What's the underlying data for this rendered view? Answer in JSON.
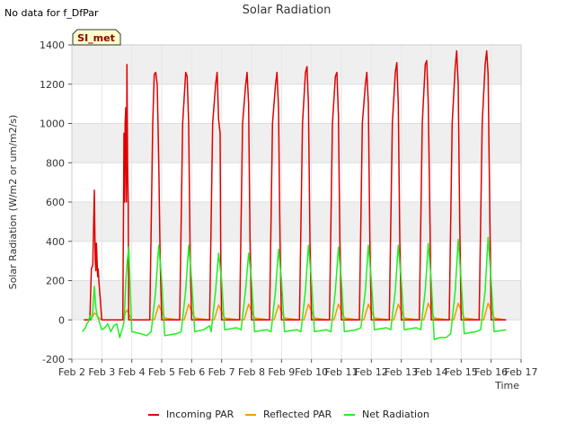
{
  "no_data_note": "No data for f_DfPar",
  "badge": "SI_met",
  "colors": {
    "incoming": "#e00000",
    "reflected": "#e8a000",
    "net": "#22ee22",
    "band": "#efefef",
    "badge_fill": "#ffffcc",
    "badge_text": "#8b0000"
  },
  "chart_data": {
    "type": "line",
    "title": "Solar Radiation",
    "xlabel": "Time",
    "ylabel": "Solar Radiation (W/m2 or um/m2/s)",
    "xlim": [
      2,
      17
    ],
    "ylim": [
      -200,
      1400
    ],
    "yticks": [
      -200,
      0,
      200,
      400,
      600,
      800,
      1000,
      1200,
      1400
    ],
    "xticks": [
      {
        "value": 2,
        "label": "Feb 2"
      },
      {
        "value": 3,
        "label": "Feb 3"
      },
      {
        "value": 4,
        "label": "Feb 4"
      },
      {
        "value": 5,
        "label": "Feb 5"
      },
      {
        "value": 6,
        "label": "Feb 6"
      },
      {
        "value": 7,
        "label": "Feb 7"
      },
      {
        "value": 8,
        "label": "Feb 8"
      },
      {
        "value": 9,
        "label": "Feb 9"
      },
      {
        "value": 10,
        "label": "Feb 10"
      },
      {
        "value": 11,
        "label": "Feb 11"
      },
      {
        "value": 12,
        "label": "Feb 12"
      },
      {
        "value": 13,
        "label": "Feb 13"
      },
      {
        "value": 14,
        "label": "Feb 14"
      },
      {
        "value": 15,
        "label": "Feb 15"
      },
      {
        "value": 16,
        "label": "Feb 16"
      },
      {
        "value": 17,
        "label": "Feb 17"
      }
    ],
    "grid": true,
    "legend_position": "bottom",
    "series": [
      {
        "name": "Incoming PAR",
        "x": [
          2.4,
          2.6,
          2.65,
          2.7,
          2.75,
          2.78,
          2.8,
          2.82,
          2.86,
          2.88,
          2.9,
          2.95,
          3.0,
          3.05,
          3.1,
          3.5,
          3.7,
          3.74,
          3.76,
          3.78,
          3.8,
          3.82,
          3.84,
          3.86,
          3.88,
          3.9,
          3.92,
          3.95,
          4.0,
          4.6,
          4.7,
          4.75,
          4.8,
          4.85,
          4.9,
          4.95,
          5.0,
          5.1,
          5.6,
          5.7,
          5.8,
          5.85,
          5.9,
          5.95,
          6.0,
          6.1,
          6.6,
          6.7,
          6.8,
          6.85,
          6.9,
          6.95,
          6.97,
          7.0,
          7.1,
          7.6,
          7.7,
          7.8,
          7.85,
          7.9,
          7.95,
          8.0,
          8.1,
          8.6,
          8.7,
          8.8,
          8.85,
          8.9,
          8.95,
          9.0,
          9.1,
          9.6,
          9.7,
          9.8,
          9.85,
          9.9,
          9.95,
          10.0,
          10.1,
          10.6,
          10.7,
          10.8,
          10.85,
          10.9,
          10.95,
          11.0,
          11.1,
          11.6,
          11.7,
          11.8,
          11.85,
          11.9,
          11.95,
          12.0,
          12.1,
          12.6,
          12.7,
          12.8,
          12.85,
          12.9,
          12.95,
          13.0,
          13.1,
          13.6,
          13.7,
          13.8,
          13.85,
          13.9,
          13.95,
          14.0,
          14.1,
          14.6,
          14.7,
          14.8,
          14.85,
          14.9,
          14.95,
          15.0,
          15.1,
          15.6,
          15.7,
          15.8,
          15.85,
          15.9,
          15.95,
          16.0,
          16.1,
          16.5
        ],
        "y": [
          0,
          0,
          260,
          280,
          660,
          300,
          250,
          390,
          220,
          260,
          200,
          100,
          0,
          0,
          0,
          0,
          0,
          950,
          600,
          1000,
          1080,
          600,
          1300,
          800,
          600,
          0,
          0,
          0,
          0,
          0,
          1000,
          1250,
          1260,
          1200,
          800,
          300,
          0,
          0,
          0,
          1000,
          1260,
          1240,
          1000,
          300,
          0,
          0,
          0,
          1000,
          1200,
          1260,
          1020,
          950,
          300,
          0,
          0,
          0,
          1000,
          1190,
          1260,
          1100,
          400,
          0,
          0,
          0,
          1000,
          1200,
          1260,
          1080,
          400,
          0,
          0,
          0,
          1000,
          1260,
          1290,
          1100,
          400,
          0,
          0,
          0,
          1000,
          1240,
          1260,
          1040,
          400,
          0,
          0,
          0,
          1000,
          1200,
          1260,
          1100,
          400,
          0,
          0,
          0,
          1000,
          1260,
          1310,
          1100,
          400,
          0,
          0,
          0,
          1000,
          1300,
          1320,
          1100,
          580,
          0,
          0,
          0,
          1000,
          1290,
          1370,
          1200,
          500,
          0,
          0,
          0,
          1000,
          1300,
          1370,
          1250,
          600,
          0,
          0,
          0
        ]
      },
      {
        "name": "Reflected PAR",
        "x": [
          2.4,
          2.6,
          2.7,
          2.75,
          2.8,
          2.9,
          3.0,
          3.5,
          3.7,
          3.8,
          3.85,
          3.9,
          4.0,
          4.6,
          4.75,
          4.9,
          5.1,
          5.6,
          5.75,
          5.9,
          6.1,
          6.6,
          6.75,
          6.9,
          7.1,
          7.6,
          7.75,
          7.9,
          8.1,
          8.6,
          8.75,
          8.9,
          9.1,
          9.6,
          9.75,
          9.9,
          10.1,
          10.6,
          10.75,
          10.9,
          11.1,
          11.6,
          11.75,
          11.9,
          12.1,
          12.6,
          12.75,
          12.9,
          13.1,
          13.6,
          13.75,
          13.9,
          14.1,
          14.6,
          14.75,
          14.9,
          15.1,
          15.6,
          15.75,
          15.9,
          16.1,
          16.5
        ],
        "y": [
          0,
          0,
          20,
          35,
          30,
          10,
          0,
          0,
          0,
          40,
          50,
          30,
          0,
          0,
          0,
          75,
          10,
          0,
          0,
          80,
          10,
          0,
          0,
          75,
          10,
          0,
          0,
          80,
          10,
          0,
          0,
          75,
          10,
          0,
          0,
          80,
          10,
          0,
          0,
          80,
          10,
          0,
          0,
          80,
          10,
          0,
          0,
          80,
          10,
          0,
          0,
          85,
          10,
          0,
          0,
          85,
          10,
          0,
          0,
          85,
          10,
          0
        ]
      },
      {
        "name": "Net Radiation",
        "x": [
          2.35,
          2.45,
          2.5,
          2.55,
          2.6,
          2.65,
          2.7,
          2.75,
          2.8,
          2.85,
          2.9,
          2.95,
          3.0,
          3.1,
          3.2,
          3.3,
          3.4,
          3.5,
          3.6,
          3.65,
          3.7,
          3.75,
          3.8,
          3.85,
          3.9,
          3.95,
          4.0,
          4.3,
          4.5,
          4.65,
          4.8,
          4.9,
          5.0,
          5.1,
          5.5,
          5.65,
          5.8,
          5.9,
          6.0,
          6.1,
          6.4,
          6.6,
          6.65,
          6.8,
          6.9,
          7.0,
          7.1,
          7.5,
          7.65,
          7.8,
          7.9,
          8.0,
          8.1,
          8.5,
          8.65,
          8.8,
          8.9,
          9.0,
          9.1,
          9.5,
          9.65,
          9.8,
          9.9,
          10.0,
          10.1,
          10.5,
          10.65,
          10.8,
          10.9,
          11.0,
          11.1,
          11.5,
          11.65,
          11.8,
          11.9,
          12.0,
          12.1,
          12.5,
          12.65,
          12.8,
          12.9,
          13.0,
          13.1,
          13.5,
          13.65,
          13.8,
          13.9,
          14.0,
          14.1,
          14.3,
          14.5,
          14.65,
          14.8,
          14.9,
          15.0,
          15.1,
          15.5,
          15.65,
          15.8,
          15.9,
          16.0,
          16.1,
          16.5
        ],
        "y": [
          -60,
          -40,
          -20,
          -10,
          20,
          0,
          50,
          170,
          60,
          20,
          0,
          -30,
          -50,
          -40,
          -20,
          -60,
          -30,
          -20,
          -90,
          -60,
          -40,
          0,
          200,
          300,
          370,
          150,
          -60,
          -70,
          -80,
          -60,
          150,
          380,
          200,
          -80,
          -70,
          -60,
          150,
          380,
          200,
          -60,
          -50,
          -30,
          -60,
          150,
          340,
          200,
          -50,
          -40,
          -50,
          150,
          340,
          200,
          -60,
          -50,
          -60,
          150,
          360,
          200,
          -60,
          -50,
          -60,
          150,
          380,
          200,
          -60,
          -50,
          -60,
          150,
          370,
          200,
          -60,
          -50,
          -40,
          150,
          380,
          200,
          -50,
          -40,
          -50,
          150,
          380,
          200,
          -50,
          -40,
          -50,
          150,
          390,
          200,
          -100,
          -90,
          -90,
          -70,
          150,
          410,
          200,
          -70,
          -60,
          -50,
          150,
          420,
          200,
          -60,
          -50
        ]
      }
    ]
  }
}
